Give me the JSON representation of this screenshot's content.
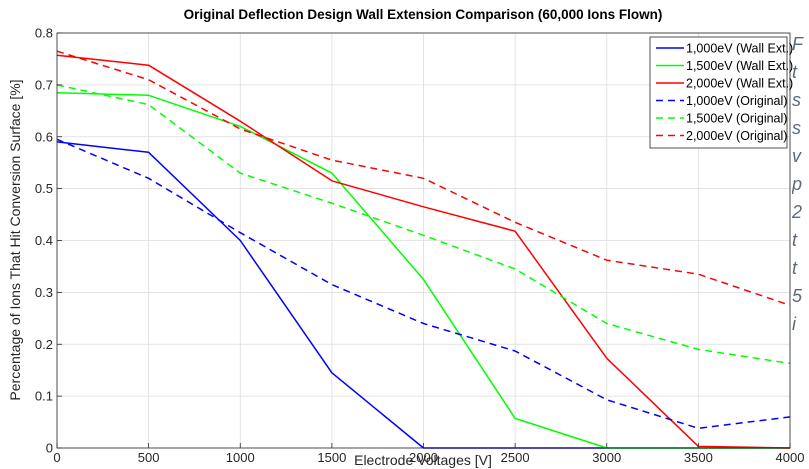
{
  "chart_data": {
    "type": "line",
    "title": "Original Deflection Design Wall Extension Comparison  (60,000 Ions Flown)",
    "xlabel": "Electrode Voltages [V]",
    "ylabel": "Percentage of Ions That Hit Conversion Surface [%]",
    "xlim": [
      0,
      4000
    ],
    "ylim": [
      0,
      0.8
    ],
    "xticks": [
      0,
      500,
      1000,
      1500,
      2000,
      2500,
      3000,
      3500,
      4000
    ],
    "yticks": [
      0,
      0.1,
      0.2,
      0.3,
      0.4,
      0.5,
      0.6,
      0.7,
      0.8
    ],
    "grid": true,
    "legend_position": "top-right",
    "x": [
      0,
      500,
      1000,
      1500,
      2000,
      2500,
      3000,
      3500,
      4000
    ],
    "series": [
      {
        "name": "1,000eV (Wall Ext.)",
        "color": "#0000ff",
        "dash": "solid",
        "values": [
          0.59,
          0.57,
          0.4,
          0.145,
          0.0,
          0.0,
          0.0,
          0.0,
          0.0
        ]
      },
      {
        "name": "1,500eV (Wall Ext.)",
        "color": "#00ff00",
        "dash": "solid",
        "values": [
          0.685,
          0.68,
          0.62,
          0.53,
          0.325,
          0.057,
          0.0,
          0.0,
          0.0
        ]
      },
      {
        "name": "2,000eV (Wall Ext.)",
        "color": "#ff0000",
        "dash": "solid",
        "values": [
          0.757,
          0.738,
          0.63,
          0.515,
          0.465,
          0.418,
          0.173,
          0.003,
          0.0
        ]
      },
      {
        "name": "1,000eV (Original)",
        "color": "#0000ff",
        "dash": "dashed",
        "values": [
          0.595,
          0.52,
          0.415,
          0.315,
          0.24,
          0.187,
          0.093,
          0.038,
          0.06
        ]
      },
      {
        "name": "1,500eV (Original)",
        "color": "#00ff00",
        "dash": "dashed",
        "values": [
          0.7,
          0.662,
          0.53,
          0.472,
          0.41,
          0.345,
          0.24,
          0.19,
          0.163
        ]
      },
      {
        "name": "2,000eV (Original)",
        "color": "#ff0000",
        "dash": "dashed",
        "values": [
          0.765,
          0.71,
          0.615,
          0.555,
          0.52,
          0.435,
          0.362,
          0.335,
          0.275
        ]
      }
    ]
  },
  "side_text": {
    "lines": [
      "F",
      "t",
      "s",
      "s",
      "v",
      "p",
      "2",
      "t",
      "t",
      "5",
      "i"
    ]
  }
}
